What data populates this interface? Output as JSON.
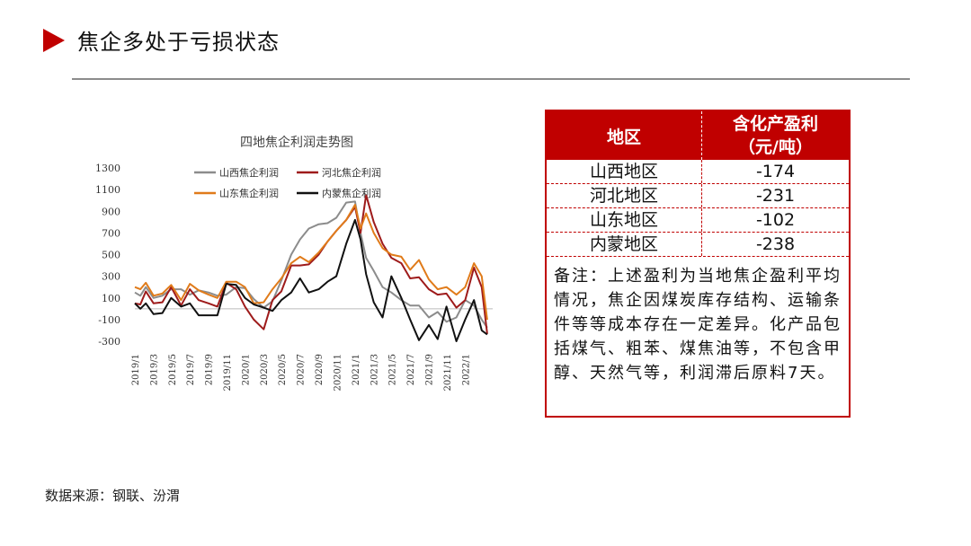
{
  "header": {
    "title": "焦企多处于亏损状态"
  },
  "chart_data": {
    "type": "line",
    "title": "四地焦企利润走势图",
    "ylim": [
      -300,
      1300
    ],
    "yticks": [
      1300,
      1100,
      900,
      700,
      500,
      300,
      100,
      -100,
      -300
    ],
    "xlim": [
      2019.0,
      2022.25
    ],
    "xticks": [
      {
        "label": "2019/1",
        "x": 2019.0
      },
      {
        "label": "2019/3",
        "x": 2019.167
      },
      {
        "label": "2019/5",
        "x": 2019.333
      },
      {
        "label": "2019/7",
        "x": 2019.5
      },
      {
        "label": "2019/9",
        "x": 2019.667
      },
      {
        "label": "2019/11",
        "x": 2019.833
      },
      {
        "label": "2020/1",
        "x": 2020.0
      },
      {
        "label": "2020/3",
        "x": 2020.167
      },
      {
        "label": "2020/5",
        "x": 2020.333
      },
      {
        "label": "2020/7",
        "x": 2020.5
      },
      {
        "label": "2020/9",
        "x": 2020.667
      },
      {
        "label": "2020/11",
        "x": 2020.833
      },
      {
        "label": "2021/1",
        "x": 2021.0
      },
      {
        "label": "2021/3",
        "x": 2021.167
      },
      {
        "label": "2021/5",
        "x": 2021.333
      },
      {
        "label": "2021/7",
        "x": 2021.5
      },
      {
        "label": "2021/9",
        "x": 2021.667
      },
      {
        "label": "2021/11",
        "x": 2021.833
      },
      {
        "label": "2022/1",
        "x": 2022.0
      }
    ],
    "legend_position": "top",
    "series": [
      {
        "name": "山西焦企利润",
        "color": "#8c8c8c",
        "x": [
          2019.0,
          2019.05,
          2019.1,
          2019.17,
          2019.25,
          2019.33,
          2019.42,
          2019.5,
          2019.58,
          2019.67,
          2019.75,
          2019.83,
          2019.92,
          2020.0,
          2020.08,
          2020.17,
          2020.25,
          2020.33,
          2020.42,
          2020.5,
          2020.58,
          2020.67,
          2020.75,
          2020.83,
          2020.92,
          2021.0,
          2021.05,
          2021.1,
          2021.17,
          2021.25,
          2021.33,
          2021.42,
          2021.5,
          2021.58,
          2021.67,
          2021.75,
          2021.83,
          2021.92,
          2022.0,
          2022.08,
          2022.15,
          2022.2
        ],
        "y": [
          150,
          120,
          200,
          100,
          120,
          180,
          180,
          130,
          170,
          150,
          120,
          130,
          200,
          190,
          90,
          10,
          70,
          260,
          500,
          640,
          740,
          780,
          790,
          840,
          980,
          990,
          700,
          470,
          350,
          200,
          150,
          80,
          30,
          30,
          -80,
          -30,
          -120,
          -80,
          80,
          30,
          -100,
          -174
        ]
      },
      {
        "name": "河北焦企利润",
        "color": "#9e1b1b",
        "x": [
          2019.0,
          2019.05,
          2019.1,
          2019.17,
          2019.25,
          2019.33,
          2019.42,
          2019.5,
          2019.58,
          2019.67,
          2019.75,
          2019.83,
          2019.92,
          2020.0,
          2020.08,
          2020.17,
          2020.25,
          2020.33,
          2020.42,
          2020.5,
          2020.58,
          2020.67,
          2020.75,
          2020.83,
          2020.92,
          2021.0,
          2021.05,
          2021.1,
          2021.17,
          2021.25,
          2021.33,
          2021.42,
          2021.5,
          2021.58,
          2021.67,
          2021.75,
          2021.83,
          2021.92,
          2022.0,
          2022.08,
          2022.15,
          2022.2
        ],
        "y": [
          50,
          40,
          160,
          50,
          60,
          200,
          30,
          180,
          80,
          50,
          20,
          240,
          180,
          20,
          -100,
          -190,
          80,
          160,
          400,
          400,
          410,
          500,
          620,
          720,
          820,
          940,
          700,
          1050,
          800,
          600,
          470,
          420,
          280,
          290,
          180,
          130,
          140,
          10,
          80,
          380,
          200,
          -231
        ]
      },
      {
        "name": "山东焦企利润",
        "color": "#e07b1a",
        "x": [
          2019.0,
          2019.05,
          2019.1,
          2019.17,
          2019.25,
          2019.33,
          2019.42,
          2019.5,
          2019.58,
          2019.67,
          2019.75,
          2019.83,
          2019.92,
          2020.0,
          2020.08,
          2020.17,
          2020.25,
          2020.33,
          2020.42,
          2020.5,
          2020.58,
          2020.67,
          2020.75,
          2020.83,
          2020.92,
          2021.0,
          2021.05,
          2021.1,
          2021.17,
          2021.25,
          2021.33,
          2021.42,
          2021.5,
          2021.58,
          2021.67,
          2021.75,
          2021.83,
          2021.92,
          2022.0,
          2022.08,
          2022.15,
          2022.2
        ],
        "y": [
          200,
          180,
          240,
          120,
          140,
          220,
          80,
          230,
          170,
          130,
          100,
          250,
          250,
          200,
          50,
          60,
          180,
          280,
          420,
          480,
          430,
          520,
          620,
          720,
          820,
          960,
          740,
          880,
          700,
          560,
          500,
          480,
          360,
          450,
          270,
          180,
          200,
          130,
          200,
          420,
          300,
          -102
        ]
      },
      {
        "name": "内蒙焦企利润",
        "color": "#111111",
        "x": [
          2019.0,
          2019.05,
          2019.1,
          2019.17,
          2019.25,
          2019.33,
          2019.42,
          2019.5,
          2019.58,
          2019.67,
          2019.75,
          2019.83,
          2019.92,
          2020.0,
          2020.08,
          2020.17,
          2020.25,
          2020.33,
          2020.42,
          2020.5,
          2020.58,
          2020.67,
          2020.75,
          2020.83,
          2020.92,
          2021.0,
          2021.05,
          2021.1,
          2021.17,
          2021.25,
          2021.33,
          2021.42,
          2021.5,
          2021.58,
          2021.67,
          2021.75,
          2021.83,
          2021.92,
          2022.0,
          2022.08,
          2022.15,
          2022.2
        ],
        "y": [
          50,
          0,
          50,
          -50,
          -40,
          100,
          20,
          50,
          -60,
          -60,
          -60,
          230,
          220,
          100,
          40,
          10,
          -20,
          80,
          150,
          280,
          150,
          180,
          250,
          300,
          600,
          820,
          640,
          320,
          60,
          -80,
          300,
          100,
          -100,
          -290,
          -150,
          -280,
          20,
          -300,
          -100,
          80,
          -200,
          -238
        ]
      }
    ]
  },
  "table": {
    "header": {
      "col1": "地区",
      "col2_line1": "含化产盈利",
      "col2_line2": "（元/吨）"
    },
    "rows": [
      {
        "region": "山西地区",
        "value": "-174"
      },
      {
        "region": "河北地区",
        "value": "-231"
      },
      {
        "region": "山东地区",
        "value": "-102"
      },
      {
        "region": "内蒙地区",
        "value": "-238"
      }
    ],
    "note": "备注：上述盈利为当地焦企盈利平均情况，焦企因煤炭库存结构、运输条件等等成本存在一定差异。化产品包括煤气、粗苯、煤焦油等，不包含甲醇、天然气等，利润滞后原料7天。"
  },
  "footer": {
    "source": "数据来源：钢联、汾渭"
  }
}
